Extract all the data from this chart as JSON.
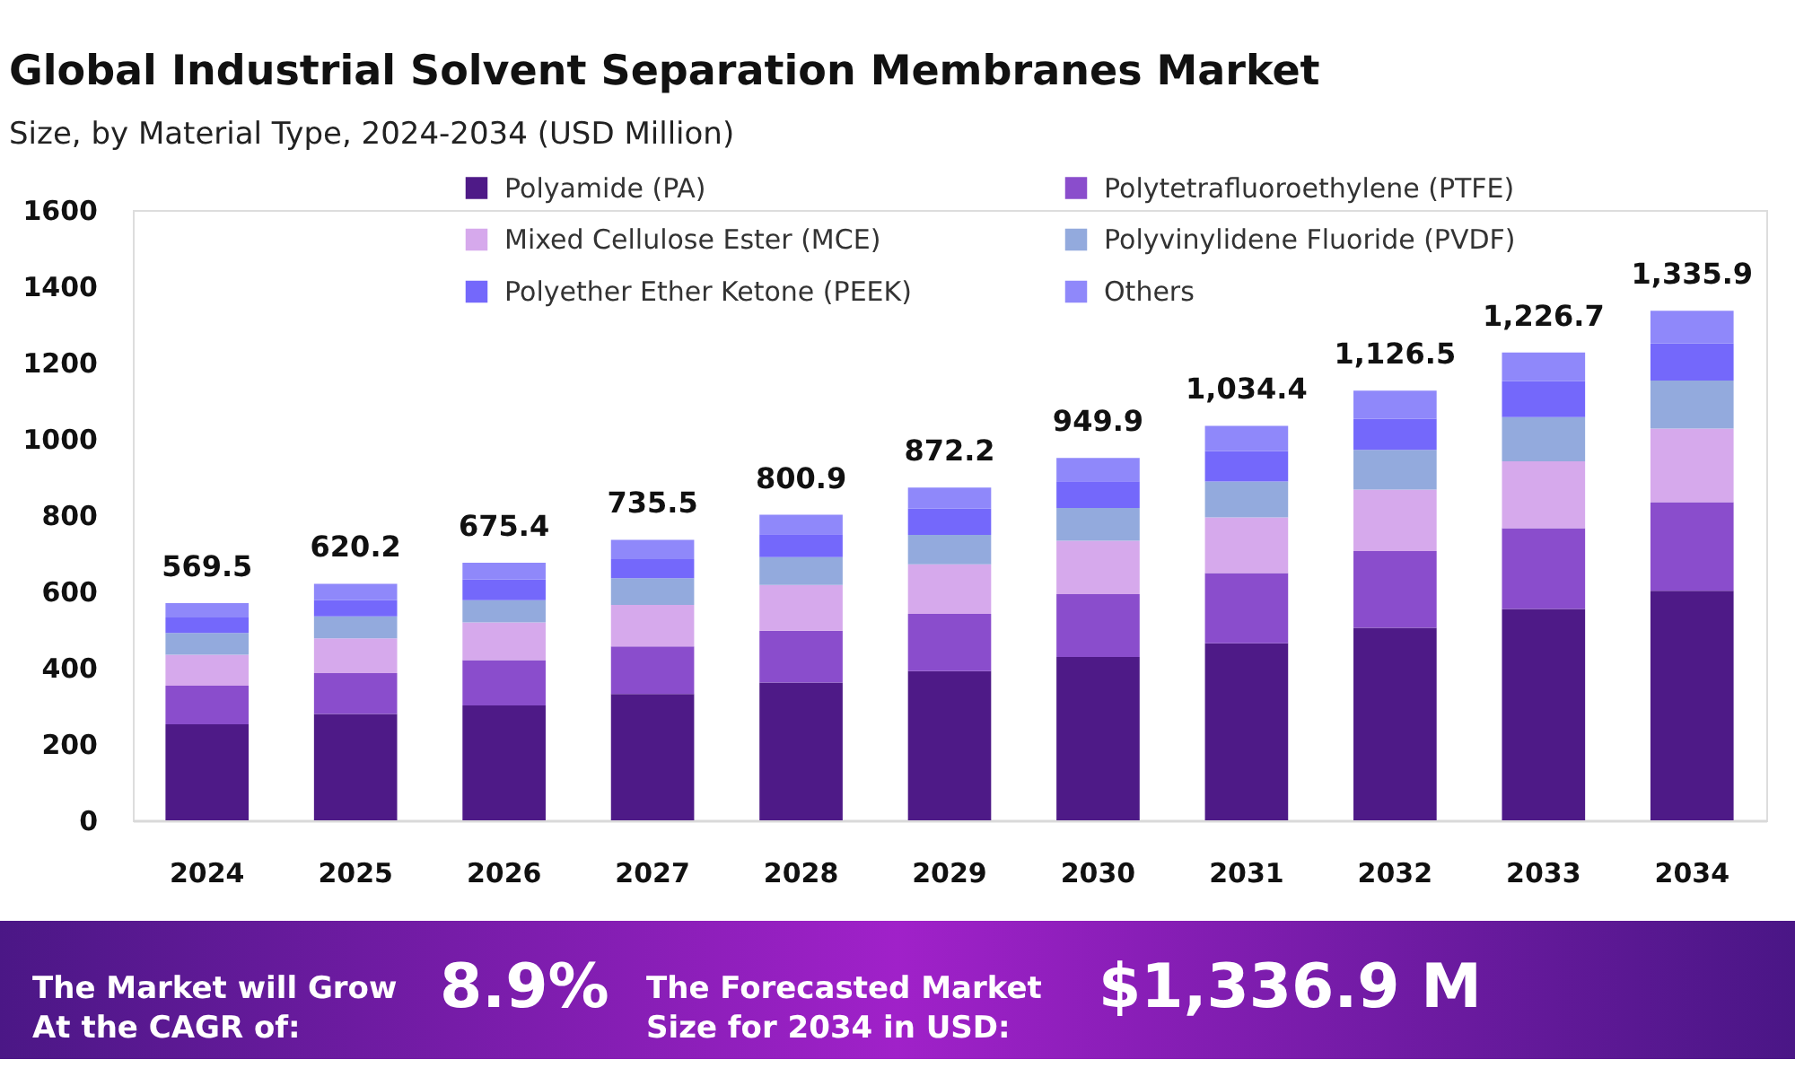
{
  "chart_data": {
    "type": "bar",
    "stacked": true,
    "title": "Global Industrial Solvent Separation Membranes Market",
    "subtitle": "Size, by Material Type, 2024-2034 (USD Million)",
    "categories": [
      "2024",
      "2025",
      "2026",
      "2027",
      "2028",
      "2029",
      "2030",
      "2031",
      "2032",
      "2033",
      "2034"
    ],
    "series": [
      {
        "name": "Polyamide (PA)",
        "color": "#4e1a87",
        "values": [
          252,
          279,
          301,
          331,
          361,
          391,
          428,
          464,
          505,
          554,
          602
        ]
      },
      {
        "name": "Polytetrafluoroethylene (PTFE)",
        "color": "#8a4dcc",
        "values": [
          101,
          107,
          119,
          125,
          136,
          150,
          165,
          184,
          201,
          212,
          232
        ]
      },
      {
        "name": "Mixed Cellulose Ester (MCE)",
        "color": "#d6a9ec",
        "values": [
          81,
          91,
          99,
          109,
          120,
          130,
          140,
          146,
          161,
          175,
          193
        ]
      },
      {
        "name": "Polyvinylidene Fluoride (PVDF)",
        "color": "#93aadd",
        "values": [
          57,
          58,
          58,
          70,
          73,
          77,
          86,
          94,
          104,
          116,
          126
        ]
      },
      {
        "name": "Polyether Ether Ketone (PEEK)",
        "color": "#7468fb",
        "values": [
          41,
          42,
          54,
          50,
          60,
          69,
          70,
          80,
          82,
          94,
          97
        ]
      },
      {
        "name": "Others",
        "color": "#8f88fa",
        "values": [
          37.5,
          43.2,
          44.4,
          50.5,
          50.9,
          55.2,
          60.9,
          66.4,
          73.5,
          75.7,
          85.9
        ]
      }
    ],
    "totals": [
      "569.5",
      "620.2",
      "675.4",
      "735.5",
      "800.9",
      "872.2",
      "949.9",
      "1,034.4",
      "1,126.5",
      "1,226.7",
      "1,335.9"
    ],
    "ylim": [
      0,
      1600
    ],
    "yticks": [
      0,
      200,
      400,
      600,
      800,
      1000,
      1200,
      1400,
      1600
    ],
    "grid": false,
    "legend": "top",
    "annotations": [
      "The Market will Grow\nAt the CAGR of:",
      "8.9%",
      "The Forecasted Market\nSize for 2034 in USD:",
      "$1,336.9 M"
    ]
  }
}
